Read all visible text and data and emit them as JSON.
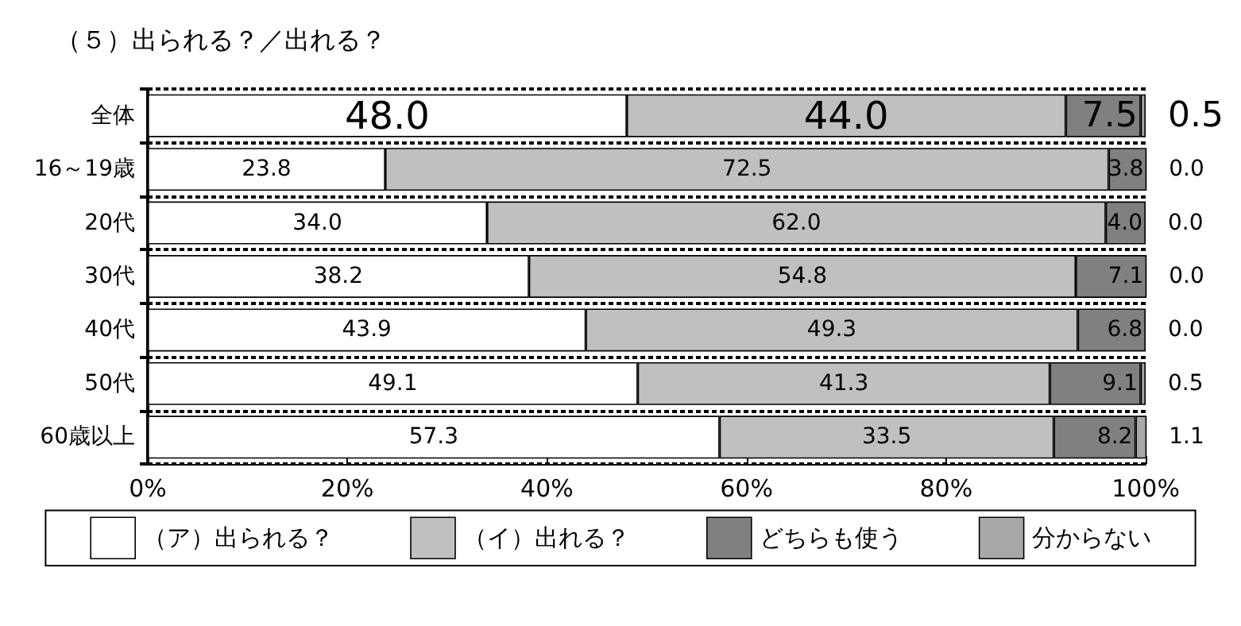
{
  "chart_data": {
    "type": "bar",
    "orientation": "horizontal",
    "stacked": true,
    "title": "（５）出られる？／出れる？",
    "categories": [
      "全体",
      "16～19歳",
      "20代",
      "30代",
      "40代",
      "50代",
      "60歳以上"
    ],
    "series": [
      {
        "name": "（ア）出られる？",
        "color": "#ffffff",
        "values": [
          48.0,
          23.8,
          34.0,
          38.2,
          43.9,
          49.1,
          57.3
        ],
        "value_labels": [
          "48.0",
          "23.8",
          "34.0",
          "38.2",
          "43.9",
          "49.1",
          "57.3"
        ]
      },
      {
        "name": "（イ）出れる？",
        "color": "#c0c0c0",
        "values": [
          44.0,
          72.5,
          62.0,
          54.8,
          49.3,
          41.3,
          33.5
        ],
        "value_labels": [
          "44.0",
          "72.5",
          "62.0",
          "54.8",
          "49.3",
          "41.3",
          "33.5"
        ]
      },
      {
        "name": "どちらも使う",
        "color": "#808080",
        "values": [
          7.5,
          3.8,
          4.0,
          7.1,
          6.8,
          9.1,
          8.2
        ],
        "value_labels": [
          "7.5",
          "3.8",
          "4.0",
          "7.1",
          "6.8",
          "9.1",
          "8.2"
        ]
      },
      {
        "name": "分からない",
        "color": "#a8a8a8",
        "values": [
          0.5,
          0.0,
          0.0,
          0.0,
          0.0,
          0.5,
          1.1
        ],
        "value_labels": [
          "0.5",
          "0.0",
          "0.0",
          "0.0",
          "0.0",
          "0.5",
          "1.1"
        ]
      }
    ],
    "xlim": [
      0,
      100
    ],
    "xticks": [
      {
        "value": 0,
        "label": "0%"
      },
      {
        "value": 20,
        "label": "20%"
      },
      {
        "value": 40,
        "label": "40%"
      },
      {
        "value": 60,
        "label": "60%"
      },
      {
        "value": 80,
        "label": "80%"
      },
      {
        "value": 100,
        "label": "100%"
      }
    ],
    "grid": "y",
    "legend": "bottom"
  }
}
